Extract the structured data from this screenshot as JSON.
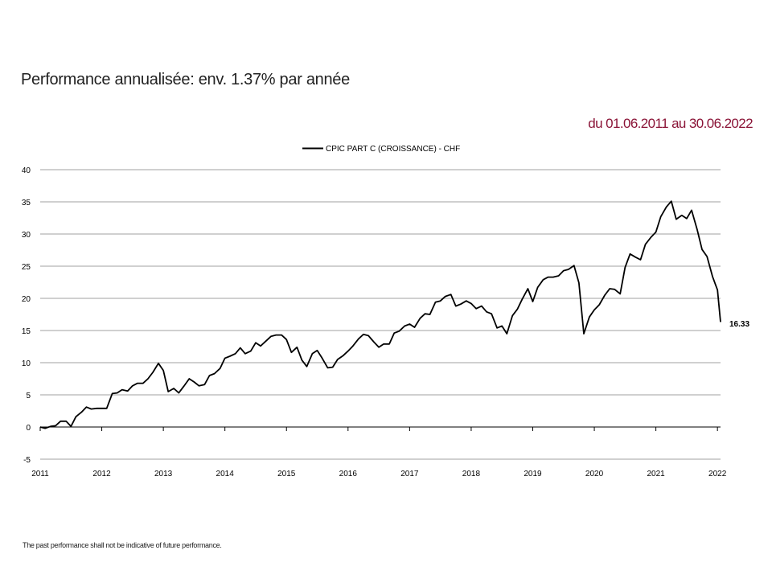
{
  "header": {
    "title": "Performance annualisée: env. 1.37% par année",
    "period": "du 01.06.2011 au 30.06.2022"
  },
  "footnote": "The past performance shall not be indicative of future performance.",
  "colors": {
    "line": "#000000",
    "grid": "#a0a0a0",
    "period": "#8b1538"
  },
  "chart_data": {
    "type": "line",
    "title": "",
    "xlabel": "",
    "ylabel": "",
    "ylim": [
      -5,
      40
    ],
    "xlim": [
      2011,
      2022.05
    ],
    "yticks": [
      -5,
      0,
      5,
      10,
      15,
      20,
      25,
      30,
      35,
      40
    ],
    "xticks": [
      "2011",
      "2012",
      "2013",
      "2014",
      "2015",
      "2016",
      "2017",
      "2018",
      "2019",
      "2020",
      "2021",
      "2022"
    ],
    "grid": true,
    "legend_position": "top-center",
    "end_label": "16.33",
    "series": [
      {
        "name": "CPIC PART C (CROISSANCE) - CHF",
        "x": [
          2011.0,
          2011.08,
          2011.17,
          2011.25,
          2011.33,
          2011.42,
          2011.5,
          2011.58,
          2011.67,
          2011.75,
          2011.83,
          2011.92,
          2012.0,
          2012.08,
          2012.17,
          2012.25,
          2012.33,
          2012.42,
          2012.5,
          2012.58,
          2012.67,
          2012.75,
          2012.83,
          2012.92,
          2013.0,
          2013.08,
          2013.17,
          2013.25,
          2013.33,
          2013.42,
          2013.5,
          2013.58,
          2013.67,
          2013.75,
          2013.83,
          2013.92,
          2014.0,
          2014.08,
          2014.17,
          2014.25,
          2014.33,
          2014.42,
          2014.5,
          2014.58,
          2014.67,
          2014.75,
          2014.83,
          2014.92,
          2015.0,
          2015.08,
          2015.17,
          2015.25,
          2015.33,
          2015.42,
          2015.5,
          2015.58,
          2015.67,
          2015.75,
          2015.83,
          2015.92,
          2016.0,
          2016.08,
          2016.17,
          2016.25,
          2016.33,
          2016.42,
          2016.5,
          2016.58,
          2016.67,
          2016.75,
          2016.83,
          2016.92,
          2017.0,
          2017.08,
          2017.17,
          2017.25,
          2017.33,
          2017.42,
          2017.5,
          2017.58,
          2017.67,
          2017.75,
          2017.83,
          2017.92,
          2018.0,
          2018.08,
          2018.17,
          2018.25,
          2018.33,
          2018.42,
          2018.5,
          2018.58,
          2018.67,
          2018.75,
          2018.83,
          2018.92,
          2019.0,
          2019.08,
          2019.17,
          2019.25,
          2019.33,
          2019.42,
          2019.5,
          2019.58,
          2019.67,
          2019.75,
          2019.83,
          2019.92,
          2020.0,
          2020.08,
          2020.17,
          2020.25,
          2020.33,
          2020.42,
          2020.5,
          2020.58,
          2020.67,
          2020.75,
          2020.83,
          2020.92,
          2021.0,
          2021.08,
          2021.17,
          2021.25,
          2021.33,
          2021.42,
          2021.5,
          2021.58,
          2021.67,
          2021.75,
          2021.83,
          2021.92,
          2022.0,
          2022.05
        ],
        "values": [
          0.0,
          -0.2,
          0.1,
          0.2,
          0.9,
          0.9,
          0.1,
          1.6,
          2.3,
          3.1,
          2.8,
          2.9,
          2.9,
          2.9,
          5.2,
          5.3,
          5.8,
          5.6,
          6.4,
          6.8,
          6.8,
          7.5,
          8.5,
          9.9,
          8.8,
          5.5,
          6.0,
          5.3,
          6.3,
          7.5,
          7.0,
          6.4,
          6.6,
          8.0,
          8.3,
          9.1,
          10.7,
          11.0,
          11.4,
          12.3,
          11.4,
          11.8,
          13.1,
          12.6,
          13.4,
          14.1,
          14.3,
          14.3,
          13.6,
          11.6,
          12.4,
          10.4,
          9.4,
          11.4,
          11.9,
          10.7,
          9.2,
          9.3,
          10.5,
          11.1,
          11.8,
          12.6,
          13.7,
          14.4,
          14.2,
          13.2,
          12.4,
          12.9,
          12.9,
          14.6,
          14.9,
          15.7,
          16.0,
          15.5,
          16.9,
          17.6,
          17.5,
          19.4,
          19.6,
          20.3,
          20.6,
          18.8,
          19.1,
          19.6,
          19.2,
          18.4,
          18.8,
          17.9,
          17.6,
          15.4,
          15.7,
          14.5,
          17.3,
          18.3,
          19.9,
          21.5,
          19.5,
          21.7,
          22.9,
          23.3,
          23.3,
          23.5,
          24.3,
          24.5,
          25.1,
          22.4,
          14.5,
          17.1,
          18.2,
          19.0,
          20.5,
          21.5,
          21.4,
          20.7,
          24.8,
          26.9,
          26.4,
          26.0,
          28.4,
          29.5,
          30.3,
          32.7,
          34.2,
          35.1,
          32.3,
          32.9,
          32.4,
          33.7,
          30.7,
          27.6,
          26.5,
          23.4,
          21.3,
          16.33
        ]
      }
    ]
  }
}
